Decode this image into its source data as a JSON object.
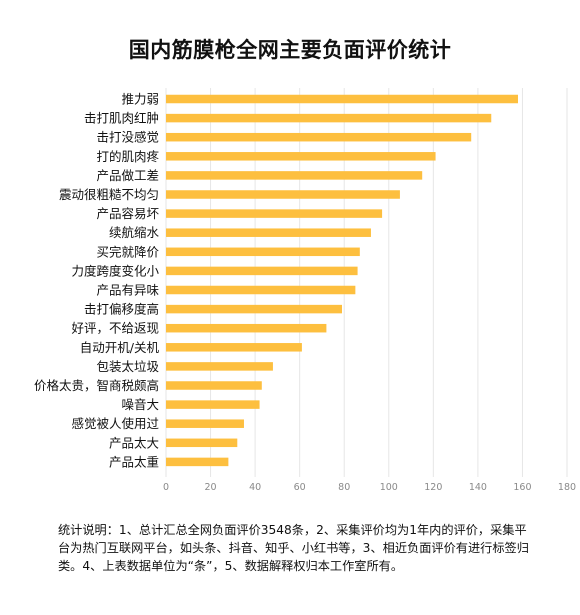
{
  "chart_data": {
    "type": "bar",
    "orientation": "horizontal",
    "title": "国内筋膜枪全网主要负面评价统计",
    "categories": [
      "推力弱",
      "击打肌肉红肿",
      "击打没感觉",
      "打的肌肉疼",
      "产品做工差",
      "震动很粗糙不均匀",
      "产品容易坏",
      "续航缩水",
      "买完就降价",
      "力度跨度变化小",
      "产品有异味",
      "击打偏移度高",
      "好评，不给返现",
      "自动开机/关机",
      "包装太垃圾",
      "价格太贵，智商税颇高",
      "噪音大",
      "感觉被人使用过",
      "产品太大",
      "产品太重"
    ],
    "values": [
      158,
      146,
      137,
      121,
      115,
      105,
      97,
      92,
      87,
      86,
      85,
      79,
      72,
      61,
      48,
      43,
      42,
      35,
      32,
      28
    ],
    "xlim": [
      0,
      180
    ],
    "xticks": [
      "0",
      "20",
      "40",
      "60",
      "80",
      "100",
      "120",
      "140",
      "160",
      "180"
    ],
    "grid": true,
    "bar_color": "#FDBF3F",
    "grid_color": "#E6E6E6"
  },
  "note": "统计说明：1、总计汇总全网负面评价3548条，2、采集评价均为1年内的评价，采集平台为热门互联网平台，如头条、抖音、知乎、小红书等，3、相近负面评价有进行标签归类。4、上表数据单位为“条”，5、数据解释权归本工作室所有。"
}
